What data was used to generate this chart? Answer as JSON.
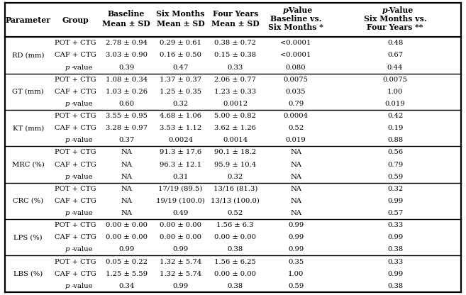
{
  "col_headers_line1": [
    "Parameter",
    "Group",
    "Baseline",
    "Six Months",
    "Four Years",
    "p-Value",
    "p-Value"
  ],
  "col_headers_line2": [
    "",
    "",
    "Mean ± SD",
    "Mean ± SD",
    "Mean ± SD",
    "Baseline vs.",
    "Six Months vs."
  ],
  "col_headers_line3": [
    "",
    "",
    "",
    "",
    "",
    "Six Months *",
    "Four Years **"
  ],
  "rows": [
    {
      "param": "RD (mm)",
      "data": [
        [
          "POT + CTG",
          "2.78 ± 0.94",
          "0.29 ± 0.61",
          "0.38 ± 0.72",
          "<0.0001",
          "0.48"
        ],
        [
          "CAF + CTG",
          "3.03 ± 0.90",
          "0.16 ± 0.50",
          "0.15 ± 0.38",
          "<0.0001",
          "0.67"
        ],
        [
          "p-value",
          "0.39",
          "0.47",
          "0.33",
          "0.080",
          "0.44"
        ]
      ]
    },
    {
      "param": "GT (mm)",
      "data": [
        [
          "POT + CTG",
          "1.08 ± 0.34",
          "1.37 ± 0.37",
          "2.06 ± 0.77",
          "0.0075",
          "0.0075"
        ],
        [
          "CAF + CTG",
          "1.03 ± 0.26",
          "1.25 ± 0.35",
          "1.23 ± 0.33",
          "0.035",
          "1.00"
        ],
        [
          "p-value",
          "0.60",
          "0.32",
          "0.0012",
          "0.79",
          "0.019"
        ]
      ]
    },
    {
      "param": "KT (mm)",
      "data": [
        [
          "POT + CTG",
          "3.55 ± 0.95",
          "4.68 ± 1.06",
          "5.00 ± 0.82",
          "0.0004",
          "0.42"
        ],
        [
          "CAF + CTG",
          "3.28 ± 0.97",
          "3.53 ± 1.12",
          "3.62 ± 1.26",
          "0.52",
          "0.19"
        ],
        [
          "p-value",
          "0.37",
          "0.0024",
          "0.0014",
          "0.019",
          "0.88"
        ]
      ]
    },
    {
      "param": "MRC (%)",
      "data": [
        [
          "POT + CTG",
          "NA",
          "91.3 ± 17.6",
          "90.1 ± 18.2",
          "NA",
          "0.56"
        ],
        [
          "CAF + CTG",
          "NA",
          "96.3 ± 12.1",
          "95.9 ± 10.4",
          "NA",
          "0.79"
        ],
        [
          "p-value",
          "NA",
          "0.31",
          "0.32",
          "NA",
          "0.59"
        ]
      ]
    },
    {
      "param": "CRC (%)",
      "data": [
        [
          "POT + CTG",
          "NA",
          "17/19 (89.5)",
          "13/16 (81.3)",
          "NA",
          "0.32"
        ],
        [
          "CAF + CTG",
          "NA",
          "19/19 (100.0)",
          "13/13 (100.0)",
          "NA",
          "0.99"
        ],
        [
          "p-value",
          "NA",
          "0.49",
          "0.52",
          "NA",
          "0.57"
        ]
      ]
    },
    {
      "param": "LPS (%)",
      "data": [
        [
          "POT + CTG",
          "0.00 ± 0.00",
          "0.00 ± 0.00",
          "1.56 ± 6.3",
          "0.99",
          "0.33"
        ],
        [
          "CAF + CTG",
          "0.00 ± 0.00",
          "0.00 ± 0.00",
          "0.00 ± 0.00",
          "0.99",
          "0.99"
        ],
        [
          "p-value",
          "0.99",
          "0.99",
          "0.38",
          "0.99",
          "0.38"
        ]
      ]
    },
    {
      "param": "LBS (%)",
      "data": [
        [
          "POT + CTG",
          "0.05 ± 0.22",
          "1.32 ± 5.74",
          "1.56 ± 6.25",
          "0.35",
          "0.33"
        ],
        [
          "CAF + CTG",
          "1.25 ± 5.59",
          "1.32 ± 5.74",
          "0.00 ± 0.00",
          "1.00",
          "0.99"
        ],
        [
          "p-value",
          "0.34",
          "0.99",
          "0.38",
          "0.59",
          "0.38"
        ]
      ]
    }
  ],
  "bg_color": "#ffffff",
  "border_color": "#000000",
  "font_size": 7.2,
  "header_font_size": 7.8
}
